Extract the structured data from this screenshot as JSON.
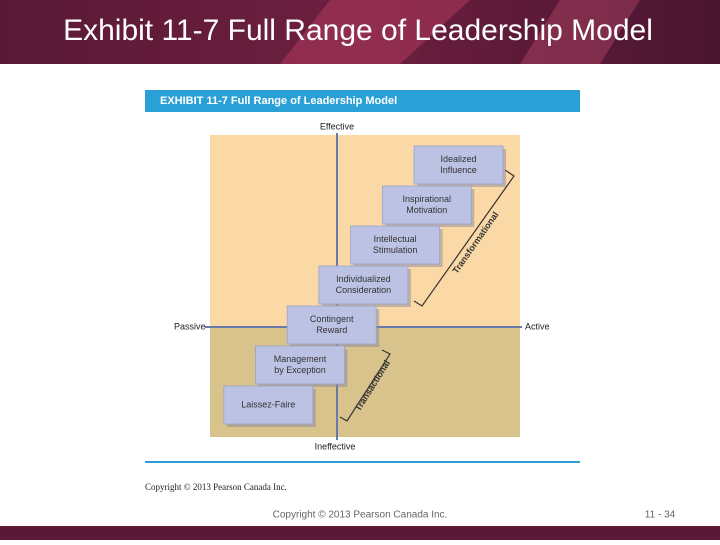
{
  "slide": {
    "title": "Exhibit 11-7 Full Range of Leadership Model",
    "footer": {
      "copyright": "Copyright © 2013 Pearson Canada Inc.",
      "page": "11 - 34"
    }
  },
  "exhibit": {
    "header": "EXHIBIT 11-7  Full Range of Leadership Model",
    "axes": {
      "top": "Effective",
      "bottom": "Ineffective",
      "left": "Passive",
      "right": "Active"
    },
    "boxes": [
      {
        "lines": [
          "Idealized",
          "Influence"
        ]
      },
      {
        "lines": [
          "Inspirational",
          "Motivation"
        ]
      },
      {
        "lines": [
          "Intellectual",
          "Stimulation"
        ]
      },
      {
        "lines": [
          "Individualized",
          "Consideration"
        ]
      },
      {
        "lines": [
          "Contingent",
          "Reward"
        ]
      },
      {
        "lines": [
          "Management",
          "by Exception"
        ]
      },
      {
        "lines": [
          "Laissez-Faire"
        ]
      }
    ],
    "brackets": {
      "upper": "Transformational",
      "lower": "Transactional"
    },
    "copyright": "Copyright © 2013 Pearson Canada Inc."
  }
}
